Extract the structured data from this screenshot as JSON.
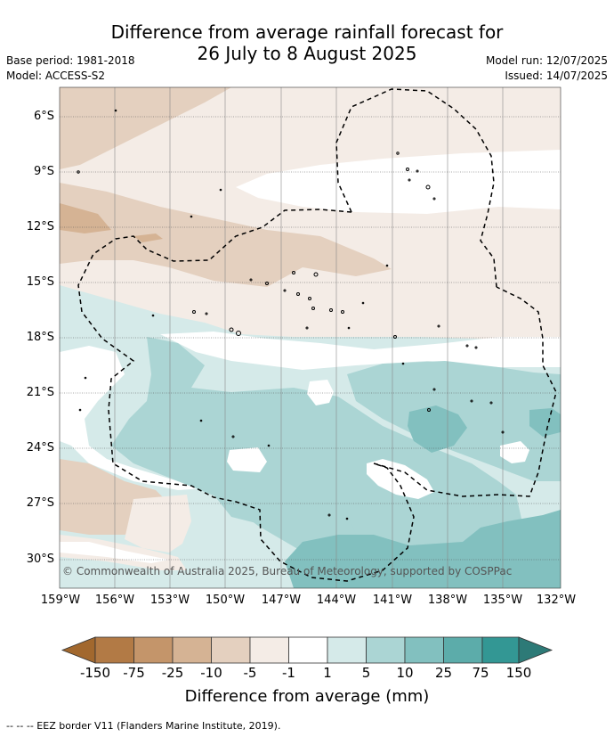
{
  "title_line1": "Difference from average rainfall forecast for",
  "title_line2": "26 July to 8 August 2025",
  "base_period": "Base period: 1981-2018",
  "model": "Model: ACCESS-S2",
  "model_run": "Model run: 12/07/2025",
  "issued": "Issued: 14/07/2025",
  "lat_labels": [
    "6°S",
    "9°S",
    "12°S",
    "15°S",
    "18°S",
    "21°S",
    "24°S",
    "27°S",
    "30°S"
  ],
  "lon_labels": [
    "159°W",
    "156°W",
    "153°W",
    "150°W",
    "147°W",
    "144°W",
    "141°W",
    "138°W",
    "135°W",
    "132°W"
  ],
  "copyright": "© Commonwealth of Australia 2025, Bureau of Meteorology, supported by COSPPac",
  "colorbar": {
    "labels": [
      "-150",
      "-75",
      "-25",
      "-10",
      "-5",
      "-1",
      "1",
      "5",
      "10",
      "25",
      "75",
      "150"
    ],
    "colors": [
      "#a2682e",
      "#b27a45",
      "#c4956a",
      "#d5b394",
      "#e4d0bf",
      "#f4ece6",
      "#ffffff",
      "#d5eae9",
      "#abd5d4",
      "#82c0bf",
      "#5cacaa",
      "#339794",
      "#2d7a77"
    ],
    "title": "Difference from average (mm)"
  },
  "footnote": "--  --  -- EEZ border V11 (Flanders Marine Institute, 2019)."
}
